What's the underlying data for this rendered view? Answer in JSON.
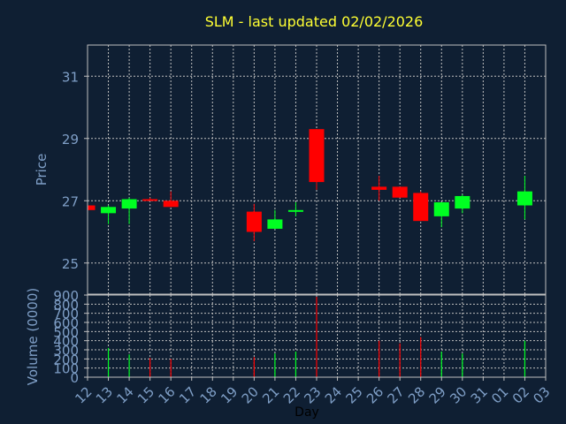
{
  "chart_data": {
    "type": "candlestick",
    "title": "SLM - last updated 02/02/2026",
    "xlabel": "Day",
    "price_ylabel": "Price",
    "volume_ylabel": "Volume (0000)",
    "x_ticks": [
      "12",
      "13",
      "14",
      "15",
      "16",
      "17",
      "18",
      "19",
      "20",
      "21",
      "22",
      "23",
      "24",
      "25",
      "26",
      "27",
      "28",
      "29",
      "30",
      "31",
      "01",
      "02",
      "03"
    ],
    "price_ylim": [
      24,
      32
    ],
    "price_ticks": [
      25,
      27,
      29,
      31
    ],
    "volume_ylim": [
      0,
      900
    ],
    "volume_ticks": [
      0,
      100,
      200,
      300,
      400,
      500,
      600,
      700,
      800,
      900
    ],
    "grid": true,
    "colors": {
      "up": "#00ff22",
      "down": "#ff0000"
    },
    "candles": [
      {
        "day": "12",
        "open": 26.85,
        "high": 26.85,
        "low": 26.7,
        "close": 26.7
      },
      {
        "day": "13",
        "open": 26.6,
        "high": 26.85,
        "low": 26.25,
        "close": 26.8
      },
      {
        "day": "14",
        "open": 26.75,
        "high": 27.1,
        "low": 26.25,
        "close": 27.05
      },
      {
        "day": "15",
        "open": 27.05,
        "high": 27.1,
        "low": 27.0,
        "close": 27.0
      },
      {
        "day": "16",
        "open": 27.0,
        "high": 27.3,
        "low": 26.8,
        "close": 26.8
      },
      {
        "day": "20",
        "open": 26.65,
        "high": 26.9,
        "low": 25.7,
        "close": 26.0
      },
      {
        "day": "21",
        "open": 26.1,
        "high": 26.7,
        "low": 26.1,
        "close": 26.4
      },
      {
        "day": "22",
        "open": 26.7,
        "high": 26.95,
        "low": 26.5,
        "close": 26.7
      },
      {
        "day": "23",
        "open": 29.3,
        "high": 29.3,
        "low": 27.35,
        "close": 27.6
      },
      {
        "day": "26",
        "open": 27.45,
        "high": 27.8,
        "low": 27.0,
        "close": 27.35
      },
      {
        "day": "27",
        "open": 27.45,
        "high": 27.45,
        "low": 27.1,
        "close": 27.1
      },
      {
        "day": "28",
        "open": 27.25,
        "high": 27.3,
        "low": 26.35,
        "close": 26.35
      },
      {
        "day": "29",
        "open": 26.5,
        "high": 26.95,
        "low": 26.15,
        "close": 26.95
      },
      {
        "day": "30",
        "open": 26.75,
        "high": 27.2,
        "low": 26.6,
        "close": 27.15
      },
      {
        "day": "02",
        "open": 26.85,
        "high": 27.8,
        "low": 26.4,
        "close": 27.3
      }
    ],
    "volumes": [
      {
        "day": "13",
        "value": 320,
        "direction": "up"
      },
      {
        "day": "14",
        "value": 250,
        "direction": "up"
      },
      {
        "day": "15",
        "value": 210,
        "direction": "down"
      },
      {
        "day": "16",
        "value": 200,
        "direction": "down"
      },
      {
        "day": "20",
        "value": 220,
        "direction": "down"
      },
      {
        "day": "21",
        "value": 260,
        "direction": "up"
      },
      {
        "day": "22",
        "value": 280,
        "direction": "up"
      },
      {
        "day": "23",
        "value": 880,
        "direction": "down"
      },
      {
        "day": "26",
        "value": 400,
        "direction": "down"
      },
      {
        "day": "27",
        "value": 370,
        "direction": "down"
      },
      {
        "day": "28",
        "value": 440,
        "direction": "down"
      },
      {
        "day": "29",
        "value": 280,
        "direction": "up"
      },
      {
        "day": "30",
        "value": 260,
        "direction": "up"
      },
      {
        "day": "02",
        "value": 400,
        "direction": "up"
      }
    ]
  }
}
